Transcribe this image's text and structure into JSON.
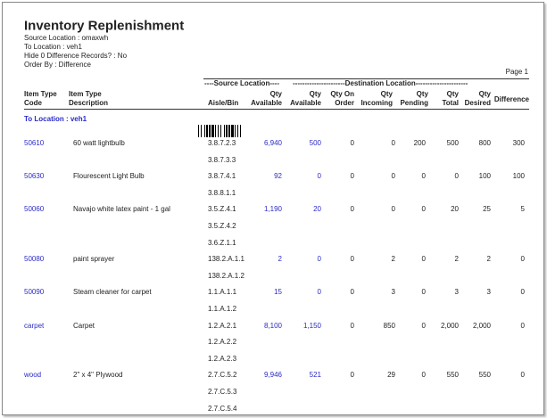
{
  "header": {
    "title": "Inventory Replenishment",
    "params": [
      "Source Location : omaxwh",
      "To Location : veh1",
      "Hide 0 Difference Records? : No",
      "Order By : Difference"
    ],
    "page": "Page 1"
  },
  "table": {
    "group_headers": [
      "----Source Location----",
      "----------------------Destination Location----------------------"
    ],
    "columns": [
      [
        "Item Type",
        "Code"
      ],
      [
        "Item Type",
        "Description"
      ],
      [
        "Aisle/Bin"
      ],
      [
        "Qty",
        "Available"
      ],
      [
        "Qty",
        "Available"
      ],
      [
        "Qty On",
        "Order"
      ],
      [
        "Qty",
        "Incoming"
      ],
      [
        "Qty",
        "Pending"
      ],
      [
        "Qty",
        "Total"
      ],
      [
        "Qty",
        "Desired"
      ],
      [
        "Difference"
      ]
    ],
    "group": "To Location : veh1",
    "rows": [
      {
        "code": "50610",
        "description": "60 watt lightbulb",
        "bins": [
          "3.8.7.2.3",
          "3.8.7.3.3"
        ],
        "qty": [
          "6,940",
          "500",
          "0",
          "0",
          "200",
          "500",
          "800",
          "300"
        ]
      },
      {
        "code": "50630",
        "description": "Flourescent Light Bulb",
        "bins": [
          "3.8.7.4.1",
          "3.8.8.1.1"
        ],
        "qty": [
          "92",
          "0",
          "0",
          "0",
          "0",
          "0",
          "100",
          "100"
        ]
      },
      {
        "code": "50060",
        "description": "Navajo white latex paint - 1 gal",
        "bins": [
          "3.5.Z.4.1",
          "3.5.Z.4.2",
          "3.6.Z.1.1"
        ],
        "qty": [
          "1,190",
          "20",
          "0",
          "0",
          "0",
          "20",
          "25",
          "5"
        ]
      },
      {
        "code": "50080",
        "description": "paint sprayer",
        "bins": [
          "138.2.A.1.1",
          "138.2.A.1.2"
        ],
        "qty": [
          "2",
          "0",
          "0",
          "2",
          "0",
          "2",
          "2",
          "0"
        ]
      },
      {
        "code": "50090",
        "description": "Steam cleaner for carpet",
        "bins": [
          "1.1.A.1.1",
          "1.1.A.1.2"
        ],
        "qty": [
          "15",
          "0",
          "0",
          "3",
          "0",
          "3",
          "3",
          "0"
        ]
      },
      {
        "code": "carpet",
        "description": "Carpet",
        "bins": [
          "1.2.A.2.1",
          "1.2.A.2.2",
          "1.2.A.2.3"
        ],
        "qty": [
          "8,100",
          "1,150",
          "0",
          "850",
          "0",
          "2,000",
          "2,000",
          "0"
        ]
      },
      {
        "code": "wood",
        "description": "2\" x 4\" Plywood",
        "bins": [
          "2.7.C.5.2",
          "2.7.C.5.3",
          "2.7.C.5.4"
        ],
        "qty": [
          "9,946",
          "521",
          "0",
          "29",
          "0",
          "550",
          "550",
          "0"
        ]
      }
    ]
  }
}
